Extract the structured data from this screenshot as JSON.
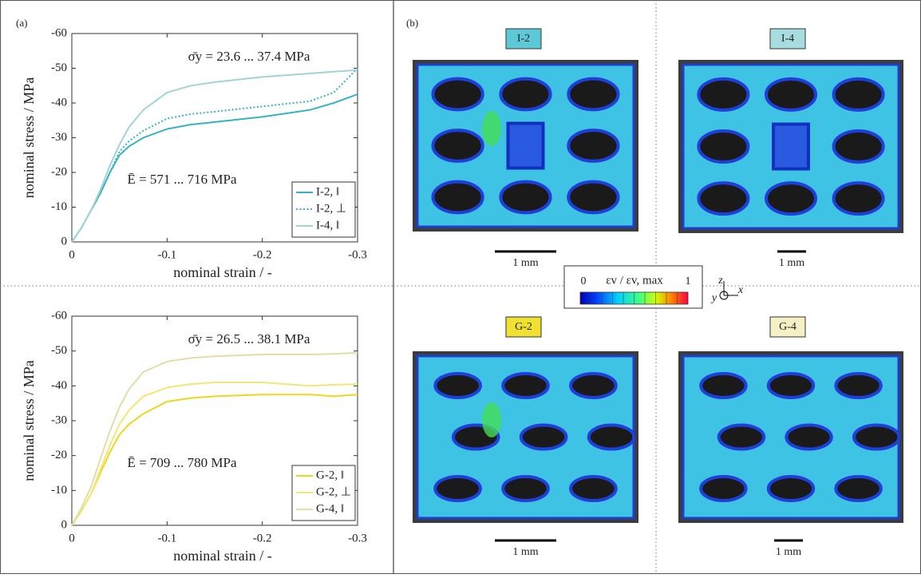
{
  "chart_data": [
    {
      "type": "line",
      "panel_label": "(a)",
      "xlabel": "nominal strain / -",
      "ylabel": "nominal stress / MPa",
      "x": [
        0,
        -0.01,
        -0.02,
        -0.03,
        -0.04,
        -0.05,
        -0.06,
        -0.075,
        -0.1,
        -0.125,
        -0.15,
        -0.2,
        -0.25,
        -0.275,
        -0.3
      ],
      "xlim": [
        0,
        -0.3
      ],
      "ylim": [
        0,
        -60
      ],
      "xticks": [
        0,
        -0.1,
        -0.2,
        -0.3
      ],
      "yticks": [
        0,
        -10,
        -20,
        -30,
        -40,
        -50,
        -60
      ],
      "legend": "lower right",
      "annotations": [
        "σ̄y = 23.6 ... 37.4 MPa",
        "Ē = 571 ... 716 MPa"
      ],
      "series": [
        {
          "name": "I-2, ‖",
          "color": "#36b2c4",
          "style": "solid",
          "values": [
            0,
            -4,
            -9,
            -14,
            -20,
            -25,
            -27.5,
            -30,
            -32.5,
            -33.8,
            -34.5,
            -36,
            -38,
            -40,
            -42.5
          ]
        },
        {
          "name": "I-2, ⊥",
          "color": "#36b2c4",
          "style": "dotted",
          "values": [
            0,
            -4,
            -9,
            -14,
            -20,
            -26,
            -29,
            -32,
            -35.5,
            -36.8,
            -37.5,
            -39,
            -40.5,
            -43,
            -50
          ]
        },
        {
          "name": "I-4, ‖",
          "color": "#a2d4d4",
          "style": "solid",
          "values": [
            0,
            -4,
            -9,
            -15,
            -22,
            -28,
            -33,
            -38,
            -43,
            -45,
            -46,
            -47.5,
            -48.5,
            -49,
            -49.5
          ]
        }
      ]
    },
    {
      "type": "line",
      "xlabel": "nominal strain / -",
      "ylabel": "nominal stress / MPa",
      "x": [
        0,
        -0.01,
        -0.02,
        -0.03,
        -0.04,
        -0.05,
        -0.06,
        -0.075,
        -0.1,
        -0.125,
        -0.15,
        -0.2,
        -0.25,
        -0.275,
        -0.3
      ],
      "xlim": [
        0,
        -0.3
      ],
      "ylim": [
        0,
        -60
      ],
      "xticks": [
        0,
        -0.1,
        -0.2,
        -0.3
      ],
      "yticks": [
        0,
        -10,
        -20,
        -30,
        -40,
        -50,
        -60
      ],
      "legend": "lower right",
      "annotations": [
        "σ̄y = 26.5 ... 38.1 MPa",
        "Ē = 709 ... 780 MPa"
      ],
      "series": [
        {
          "name": "G-2, ‖",
          "color": "#eed620",
          "style": "solid",
          "values": [
            0,
            -4,
            -9,
            -15,
            -21,
            -26,
            -29,
            -32,
            -35.5,
            -36.5,
            -37,
            -37.5,
            -37.5,
            -37,
            -37.5
          ]
        },
        {
          "name": "G-2, ⊥",
          "color": "#f3e676",
          "style": "solid",
          "values": [
            0,
            -4,
            -9,
            -16,
            -23,
            -29,
            -33,
            -37,
            -39.5,
            -40.5,
            -41,
            -41,
            -40,
            -40.3,
            -40.5
          ]
        },
        {
          "name": "G-4, ‖",
          "color": "#e2dea6",
          "style": "solid",
          "values": [
            0,
            -5,
            -11,
            -19,
            -27,
            -34,
            -39,
            -44,
            -47,
            -48,
            -48.5,
            -49,
            -49,
            -49.2,
            -49.5
          ]
        }
      ]
    }
  ],
  "panel_b": {
    "label": "(b)",
    "images": [
      {
        "label": "I-2",
        "color": "#5cc8d8",
        "scale_bar": "1 mm"
      },
      {
        "label": "I-4",
        "color": "#a8dde0",
        "scale_bar": "1 mm"
      },
      {
        "label": "G-2",
        "color": "#f0e030",
        "scale_bar": "1 mm"
      },
      {
        "label": "G-4",
        "color": "#f6f1c4",
        "scale_bar": "1 mm"
      }
    ],
    "colorbar": {
      "min": 0,
      "max": 1,
      "label": "εv / εv, max"
    },
    "axes": [
      "z",
      "x",
      "y"
    ]
  }
}
